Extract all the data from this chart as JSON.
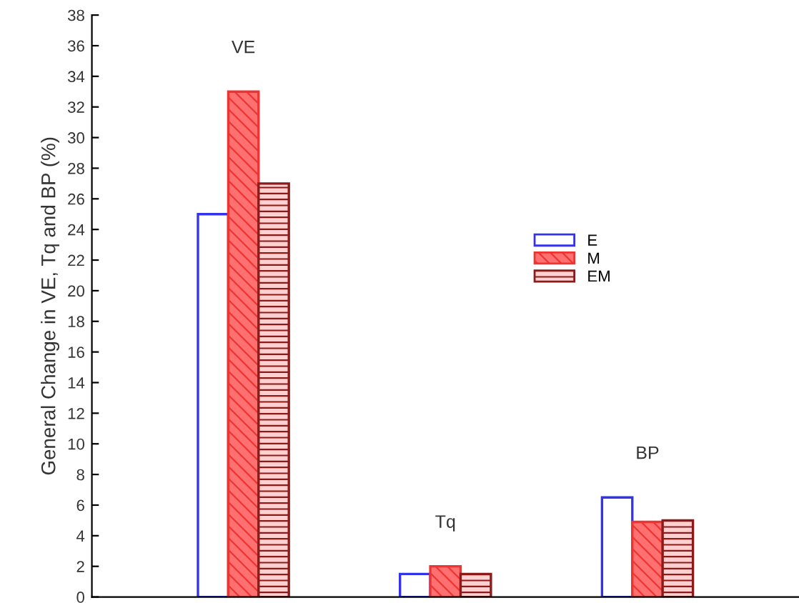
{
  "chart_data": {
    "type": "bar",
    "ylabel": "General Change in VE, Tq and BP (%)",
    "categories": [
      "VE",
      "Tq",
      "BP"
    ],
    "series": [
      {
        "name": "E",
        "color": "#3333ee",
        "values": [
          25,
          1.5,
          6.5
        ]
      },
      {
        "name": "M",
        "color": "#ee3333",
        "values": [
          33,
          2.0,
          4.9
        ]
      },
      {
        "name": "EM",
        "color": "#8b1a1a",
        "values": [
          27,
          1.5,
          5.0
        ]
      }
    ],
    "ylim": [
      0,
      38
    ],
    "yticks": [
      0,
      2,
      4,
      6,
      8,
      10,
      12,
      14,
      16,
      18,
      20,
      22,
      24,
      26,
      28,
      30,
      32,
      34,
      36,
      38
    ],
    "tick_labels": "y",
    "grid": false,
    "legend": "center"
  }
}
